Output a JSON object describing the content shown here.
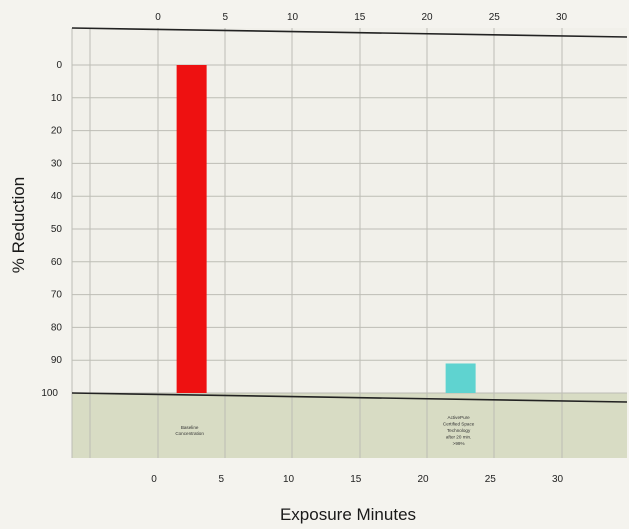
{
  "chart_data": {
    "type": "bar",
    "xlabel": "Exposure Minutes",
    "ylabel": "% Reduction",
    "xlim": [
      0,
      30
    ],
    "ylim": [
      0,
      100
    ],
    "y_inverted": true,
    "x_ticks": [
      0,
      5,
      10,
      15,
      20,
      25,
      30
    ],
    "y_ticks": [
      0,
      10,
      20,
      30,
      40,
      50,
      60,
      70,
      80,
      90,
      100
    ],
    "grid": true,
    "bars": [
      {
        "label_lines": [
          "Baseline",
          "Concentration"
        ],
        "x": 2.5,
        "value": 100,
        "color": "#ee1111"
      },
      {
        "label_lines": [
          "ActivePure",
          "Certified Space",
          "Technology",
          "after 20 min.",
          ">99%"
        ],
        "x": 22.5,
        "value": 9,
        "color": "#5fd3d0"
      }
    ]
  }
}
